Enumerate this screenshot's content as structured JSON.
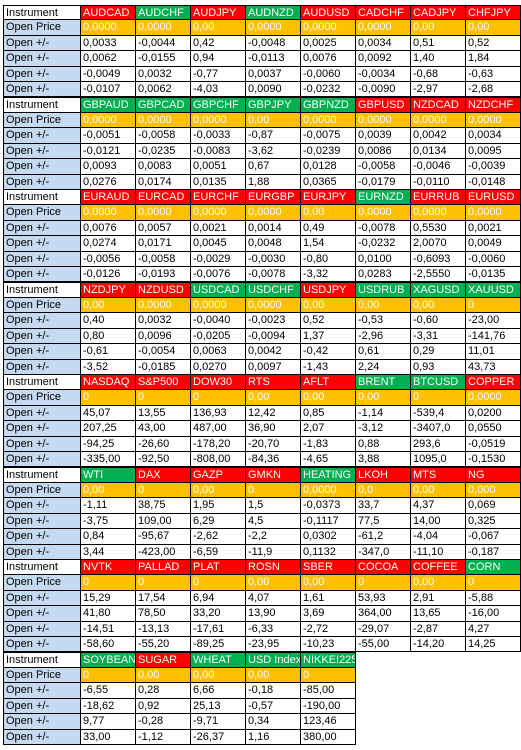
{
  "labels": {
    "instrument": "Instrument",
    "open_price": "Open Price",
    "change": "Open +/-"
  },
  "blocks": [
    {
      "instruments": [
        {
          "name": "AUDCAD",
          "color": "#ff0000"
        },
        {
          "name": "AUDCHF",
          "color": "#00b050"
        },
        {
          "name": "AUDJPY",
          "color": "#ff0000"
        },
        {
          "name": "AUDNZD",
          "color": "#00b050"
        },
        {
          "name": "AUDUSD",
          "color": "#ff0000"
        },
        {
          "name": "CADCHF",
          "color": "#ff0000"
        },
        {
          "name": "CADJPY",
          "color": "#ff0000"
        },
        {
          "name": "CHFJPY",
          "color": "#ff0000"
        }
      ],
      "open_price": [
        "0,0000",
        "0,0000",
        "0,00",
        "0,0000",
        "0,0000",
        "0,0000",
        "0,00",
        "0,00"
      ],
      "rows": [
        [
          "0,0033",
          "-0,0044",
          "0,42",
          "-0,0048",
          "0,0025",
          "0,0034",
          "0,51",
          "0,52"
        ],
        [
          "0,0062",
          "-0,0155",
          "0,94",
          "-0,0113",
          "0,0076",
          "0,0092",
          "1,40",
          "1,84"
        ],
        [
          "-0,0049",
          "0,0032",
          "-0,77",
          "0,0037",
          "-0,0060",
          "-0,0034",
          "-0,68",
          "-0,63"
        ],
        [
          "-0,0107",
          "0,0062",
          "-4,03",
          "0,0090",
          "-0,0232",
          "-0,0090",
          "-2,97",
          "-2,68"
        ]
      ]
    },
    {
      "instruments": [
        {
          "name": "GBPAUD",
          "color": "#00b050"
        },
        {
          "name": "GBPCAD",
          "color": "#00b050"
        },
        {
          "name": "GBPCHF",
          "color": "#00b050"
        },
        {
          "name": "GBPJPY",
          "color": "#00b050"
        },
        {
          "name": "GBPNZD",
          "color": "#00b050"
        },
        {
          "name": "GBPUSD",
          "color": "#ff0000"
        },
        {
          "name": "NZDCAD",
          "color": "#ff0000"
        },
        {
          "name": "NZDCHF",
          "color": "#ff0000"
        }
      ],
      "open_price": [
        "0,0000",
        "0,0000",
        "0,0000",
        "0,00",
        "0,0000",
        "0,0000",
        "0,0000",
        "0,0000"
      ],
      "rows": [
        [
          "-0,0051",
          "-0,0058",
          "-0,0033",
          "-0,87",
          "-0,0075",
          "0,0039",
          "0,0042",
          "0,0034"
        ],
        [
          "-0,0121",
          "-0,0235",
          "-0,0083",
          "-3,62",
          "-0,0239",
          "0,0086",
          "0,0134",
          "0,0095"
        ],
        [
          "0,0093",
          "0,0083",
          "0,0051",
          "0,67",
          "0,0128",
          "-0,0058",
          "-0,0046",
          "-0,0039"
        ],
        [
          "0,0276",
          "0,0174",
          "0,0135",
          "1,88",
          "0,0365",
          "-0,0179",
          "-0,0110",
          "-0,0148"
        ]
      ]
    },
    {
      "instruments": [
        {
          "name": "EURAUD",
          "color": "#ff0000"
        },
        {
          "name": "EURCAD",
          "color": "#ff0000"
        },
        {
          "name": "EURCHF",
          "color": "#ff0000"
        },
        {
          "name": "EURGBP",
          "color": "#ff0000"
        },
        {
          "name": "EURJPY",
          "color": "#ff0000"
        },
        {
          "name": "EURNZD",
          "color": "#00b050"
        },
        {
          "name": "EURRUB",
          "color": "#ff0000"
        },
        {
          "name": "EURUSD",
          "color": "#ff0000"
        }
      ],
      "open_price": [
        "0,0000",
        "0,0000",
        "0,0000",
        "0,0000",
        "0,00",
        "0,0000",
        "0,0000",
        "0,0000"
      ],
      "rows": [
        [
          "0,0076",
          "0,0057",
          "0,0021",
          "0,0014",
          "0,49",
          "-0,0078",
          "0,5530",
          "0,0021"
        ],
        [
          "0,0274",
          "0,0171",
          "0,0045",
          "0,0048",
          "1,54",
          "-0,0232",
          "2,0070",
          "0,0049"
        ],
        [
          "-0,0056",
          "-0,0058",
          "-0,0029",
          "-0,0030",
          "-0,80",
          "0,0100",
          "-0,6093",
          "-0,0060"
        ],
        [
          "-0,0126",
          "-0,0193",
          "-0,0076",
          "-0,0078",
          "-3,32",
          "0,0283",
          "-2,5550",
          "-0,0135"
        ]
      ]
    },
    {
      "instruments": [
        {
          "name": "NZDJPY",
          "color": "#ff0000"
        },
        {
          "name": "NZDUSD",
          "color": "#ff0000"
        },
        {
          "name": "USDCAD",
          "color": "#00b050"
        },
        {
          "name": "USDCHF",
          "color": "#00b050"
        },
        {
          "name": "USDJPY",
          "color": "#ff0000"
        },
        {
          "name": "USDRUB",
          "color": "#00b050"
        },
        {
          "name": "XAGUSD",
          "color": "#00b050"
        },
        {
          "name": "XAUUSD",
          "color": "#00b050"
        }
      ],
      "open_price": [
        "0,00",
        "0,0000",
        "0,0000",
        "0,0000",
        "0,00",
        "0,00",
        "0,00",
        "0"
      ],
      "rows": [
        [
          "0,40",
          "0,0032",
          "-0,0040",
          "-0,0023",
          "0,52",
          "-0,53",
          "-0,60",
          "-23,00"
        ],
        [
          "0,80",
          "0,0096",
          "-0,0205",
          "-0,0094",
          "1,37",
          "-2,96",
          "-3,31",
          "-141,76"
        ],
        [
          "-0,61",
          "-0,0054",
          "0,0063",
          "0,0042",
          "-0,42",
          "0,61",
          "0,29",
          "11,01"
        ],
        [
          "-3,52",
          "-0,0185",
          "0,0270",
          "0,0097",
          "-1,43",
          "2,24",
          "0,93",
          "43,73"
        ]
      ]
    },
    {
      "instruments": [
        {
          "name": "NASDAQ",
          "color": "#ff0000"
        },
        {
          "name": "S&P500",
          "color": "#ff0000"
        },
        {
          "name": "DOW30",
          "color": "#ff0000"
        },
        {
          "name": "RTS",
          "color": "#ff0000"
        },
        {
          "name": "AFLT",
          "color": "#ff0000"
        },
        {
          "name": "BRENT",
          "color": "#00b050"
        },
        {
          "name": "BTCUSD",
          "color": "#00b050"
        },
        {
          "name": "COPPER",
          "color": "#ff0000"
        }
      ],
      "open_price": [
        "0",
        "0",
        "0",
        "0,00",
        "0,00",
        "0,00",
        "0",
        "0,0000"
      ],
      "rows": [
        [
          "45,07",
          "13,55",
          "136,93",
          "12,42",
          "0,85",
          "-1,14",
          "-539,4",
          "0,0200"
        ],
        [
          "207,25",
          "43,00",
          "487,00",
          "36,90",
          "2,07",
          "-3,12",
          "-3407,0",
          "0,0550"
        ],
        [
          "-94,25",
          "-26,60",
          "-178,20",
          "-20,70",
          "-1,83",
          "0,88",
          "293,6",
          "-0,0519"
        ],
        [
          "-335,00",
          "-92,50",
          "-808,00",
          "-84,36",
          "-4,65",
          "3,88",
          "1095,0",
          "-0,1530"
        ]
      ]
    },
    {
      "instruments": [
        {
          "name": "WTI",
          "color": "#00b050"
        },
        {
          "name": "DAX",
          "color": "#ff0000"
        },
        {
          "name": "GAZP",
          "color": "#ff0000"
        },
        {
          "name": "GMKN",
          "color": "#ff0000"
        },
        {
          "name": "HEATING",
          "color": "#00b050"
        },
        {
          "name": "LKOH",
          "color": "#ff0000"
        },
        {
          "name": "MTS",
          "color": "#ff0000"
        },
        {
          "name": "NG",
          "color": "#ff0000"
        }
      ],
      "open_price": [
        "0,00",
        "0",
        "0,00",
        "0",
        "0,0000",
        "0,0",
        "0,00",
        "0,000"
      ],
      "rows": [
        [
          "-1,11",
          "38,75",
          "1,95",
          "1,5",
          "-0,0373",
          "33,7",
          "4,37",
          "0,069"
        ],
        [
          "-3,75",
          "109,00",
          "6,29",
          "4,5",
          "-0,1117",
          "77,5",
          "14,00",
          "0,325"
        ],
        [
          "0,84",
          "-95,67",
          "-2,62",
          "-2,2",
          "0,0302",
          "-61,2",
          "-4,04",
          "-0,067"
        ],
        [
          "3,44",
          "-423,00",
          "-6,59",
          "-11,9",
          "0,1132",
          "-347,0",
          "-11,10",
          "-0,187"
        ]
      ]
    },
    {
      "instruments": [
        {
          "name": "NVTK",
          "color": "#ff0000"
        },
        {
          "name": "PALLAD",
          "color": "#ff0000"
        },
        {
          "name": "PLAT",
          "color": "#ff0000"
        },
        {
          "name": "ROSN",
          "color": "#ff0000"
        },
        {
          "name": "SBER",
          "color": "#ff0000"
        },
        {
          "name": "COCOA",
          "color": "#ff0000"
        },
        {
          "name": "COFFEE",
          "color": "#ff0000"
        },
        {
          "name": "CORN",
          "color": "#00b050"
        }
      ],
      "open_price": [
        "0",
        "0",
        "0",
        "0,00",
        "0,00",
        "0",
        "0,00",
        "0"
      ],
      "rows": [
        [
          "15,29",
          "17,54",
          "6,94",
          "4,07",
          "1,61",
          "53,93",
          "2,91",
          "-5,88"
        ],
        [
          "41,80",
          "78,50",
          "33,20",
          "13,90",
          "3,69",
          "364,00",
          "13,65",
          "-16,00"
        ],
        [
          "-14,51",
          "-13,13",
          "-17,61",
          "-6,33",
          "-2,72",
          "-29,07",
          "-2,87",
          "4,27"
        ],
        [
          "-58,60",
          "-55,20",
          "-89,25",
          "-23,95",
          "-10,23",
          "-55,00",
          "-14,20",
          "14,25"
        ]
      ]
    },
    {
      "instruments": [
        {
          "name": "SOYBEAN",
          "color": "#00b050"
        },
        {
          "name": "SUGAR",
          "color": "#ff0000"
        },
        {
          "name": "WHEAT",
          "color": "#00b050"
        },
        {
          "name": "USD Index",
          "color": "#00b050"
        },
        {
          "name": "NIKKEI225",
          "color": "#00b050"
        }
      ],
      "open_price": [
        "0",
        "0,00",
        "0,00",
        "0,00",
        "0"
      ],
      "rows": [
        [
          "-6,55",
          "0,28",
          "6,66",
          "-0,18",
          "-85,00"
        ],
        [
          "-18,62",
          "0,92",
          "25,13",
          "-0,57",
          "-190,00"
        ],
        [
          "9,77",
          "-0,28",
          "-9,71",
          "0,34",
          "123,46"
        ],
        [
          "33,00",
          "-1,12",
          "-26,37",
          "1,16",
          "380,00"
        ]
      ]
    }
  ]
}
